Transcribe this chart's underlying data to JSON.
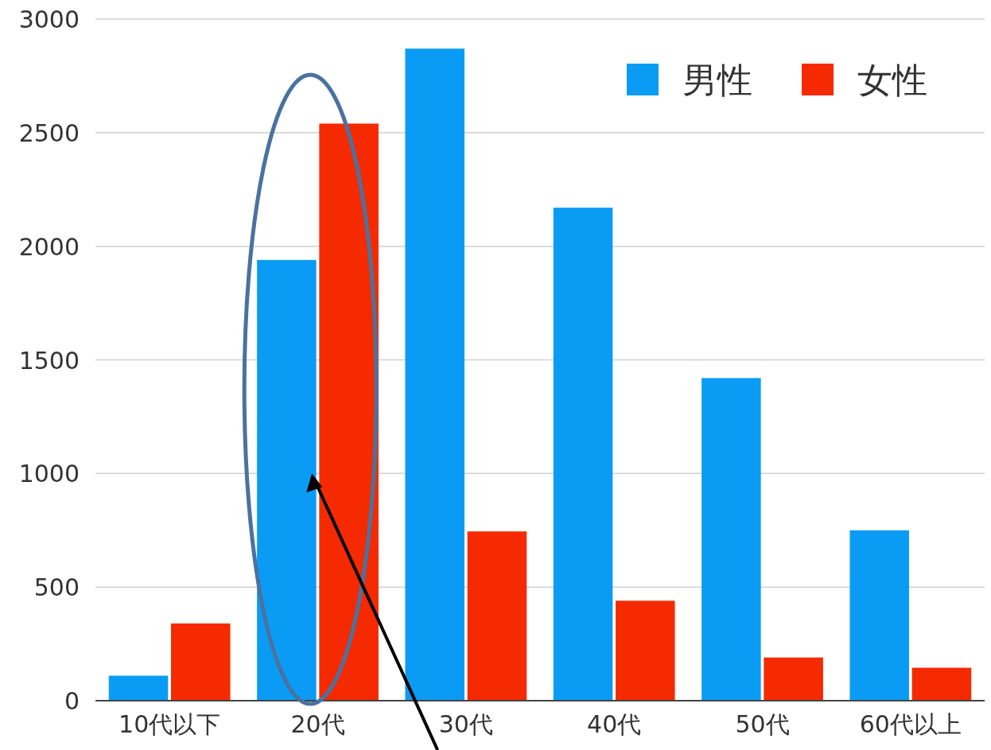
{
  "chart_data": {
    "type": "bar",
    "categories": [
      "10代以下",
      "20代",
      "30代",
      "40代",
      "50代",
      "60代以上"
    ],
    "series": [
      {
        "name": "男性",
        "color": "#0a9cf5",
        "values": [
          110,
          1940,
          2870,
          2170,
          1420,
          750
        ]
      },
      {
        "name": "女性",
        "color": "#f52a00",
        "values": [
          340,
          2540,
          745,
          440,
          190,
          145
        ]
      }
    ],
    "ylim": [
      0,
      3000
    ],
    "yticks": [
      0,
      500,
      1000,
      1500,
      2000,
      2500,
      3000
    ],
    "grid": "y",
    "legend": "top right"
  }
}
